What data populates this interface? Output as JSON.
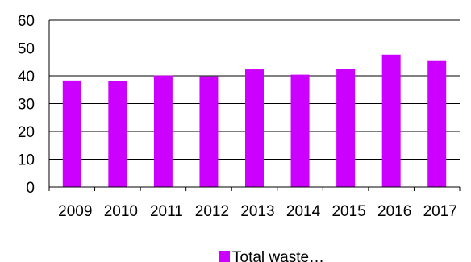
{
  "chart_data": {
    "type": "bar",
    "categories": [
      "2009",
      "2010",
      "2011",
      "2012",
      "2013",
      "2014",
      "2015",
      "2016",
      "2017"
    ],
    "series": [
      {
        "name": "Total waste…",
        "values": [
          38.3,
          38.2,
          40.1,
          39.8,
          42.3,
          40.4,
          42.6,
          47.6,
          45.3
        ],
        "color": "#cc00ff"
      }
    ],
    "ylim": [
      0,
      60
    ],
    "yticks": [
      "0",
      "10",
      "20",
      "30",
      "40",
      "50",
      "60"
    ],
    "grid": true,
    "legend_position": "bottom"
  }
}
